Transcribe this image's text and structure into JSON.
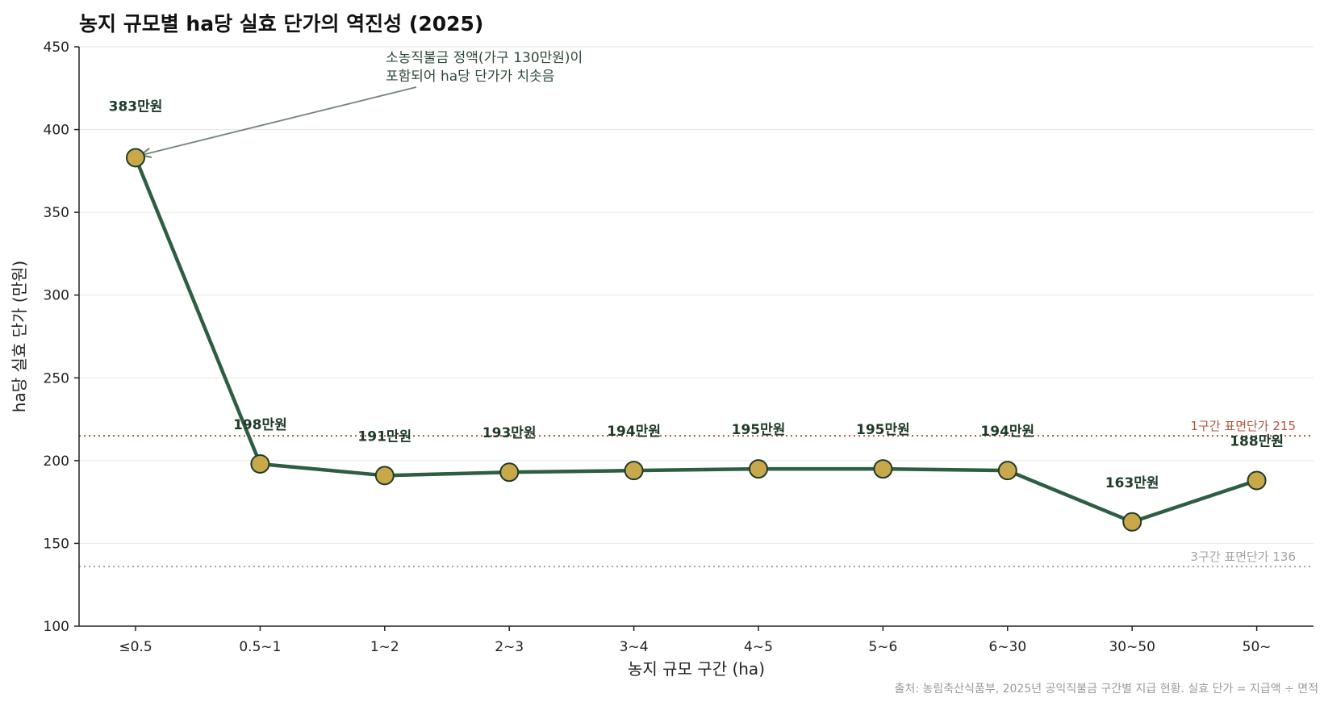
{
  "chart_data": {
    "type": "line",
    "title": "농지 규모별 ha당 실효 단가의 역진성 (2025)",
    "xlabel": "농지 규모 구간 (ha)",
    "ylabel": "ha당 실효 단가 (만원)",
    "ylim": [
      100,
      450
    ],
    "yticks": [
      100,
      150,
      200,
      250,
      300,
      350,
      400,
      450
    ],
    "grid": "horizontal",
    "categories": [
      "≤0.5",
      "0.5~1",
      "1~2",
      "2~3",
      "3~4",
      "4~5",
      "5~6",
      "6~30",
      "30~50",
      "50~"
    ],
    "values": [
      383,
      198,
      191,
      193,
      194,
      195,
      195,
      194,
      163,
      188
    ],
    "data_labels": [
      "383만원",
      "198만원",
      "191만원",
      "193만원",
      "194만원",
      "195만원",
      "195만원",
      "194만원",
      "163만원",
      "188만원"
    ],
    "reference_lines": [
      {
        "label": "1구간 표면단가 215",
        "value": 215,
        "color": "#b5533c"
      },
      {
        "label": "3구간 표면단가 136",
        "value": 136,
        "color": "#a3a3a3"
      }
    ],
    "annotation": {
      "lines": [
        "소농직불금 정액(가구 130만원)이",
        "포함되어 ha당 단가가 치솟음"
      ],
      "target_category": "≤0.5",
      "target_value": 383
    },
    "source_note": "출처: 농림축산식품부, 2025년 공익직불금 구간별 지급 현황. 실효 단가 = 지급액 ÷ 면적",
    "colors": {
      "line": "#2e5e41",
      "marker_fill": "#c9a84c",
      "marker_stroke": "#1f3b2a",
      "grid": "#e6e6e6",
      "axis": "#222222"
    }
  }
}
